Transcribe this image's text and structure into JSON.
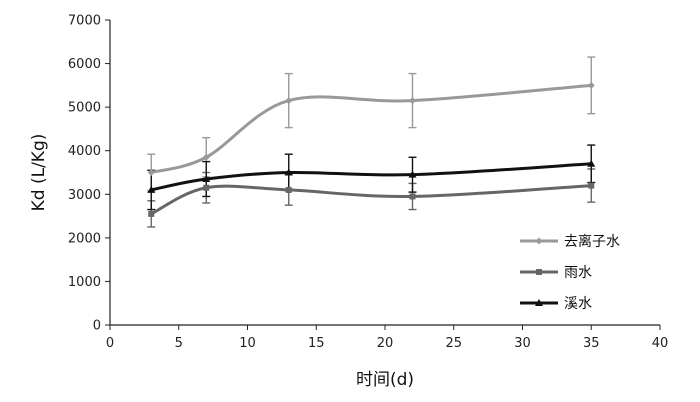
{
  "chart_data": {
    "type": "line",
    "xlabel": "时间(d)",
    "ylabel": "Kd (L/Kg)",
    "xlim": [
      0,
      40
    ],
    "ylim": [
      0,
      7000
    ],
    "xticks": [
      0,
      5,
      10,
      15,
      20,
      25,
      30,
      35,
      40
    ],
    "yticks": [
      0,
      1000,
      2000,
      3000,
      4000,
      5000,
      6000,
      7000
    ],
    "grid": false,
    "legend_position": "right",
    "x": [
      3,
      7,
      13,
      22,
      35
    ],
    "series": [
      {
        "name": "去离子水",
        "color": "#999999",
        "marker": "diamond",
        "values": [
          3500,
          3850,
          5150,
          5150,
          5500
        ],
        "error": [
          420,
          450,
          620,
          620,
          650
        ]
      },
      {
        "name": "雨水",
        "color": "#666666",
        "marker": "square",
        "values": [
          2550,
          3150,
          3100,
          2950,
          3200
        ],
        "error": [
          300,
          350,
          350,
          300,
          380
        ]
      },
      {
        "name": "溪水",
        "color": "#111111",
        "marker": "triangle",
        "values": [
          3100,
          3350,
          3500,
          3450,
          3700
        ],
        "error": [
          450,
          400,
          420,
          400,
          430
        ]
      }
    ]
  }
}
